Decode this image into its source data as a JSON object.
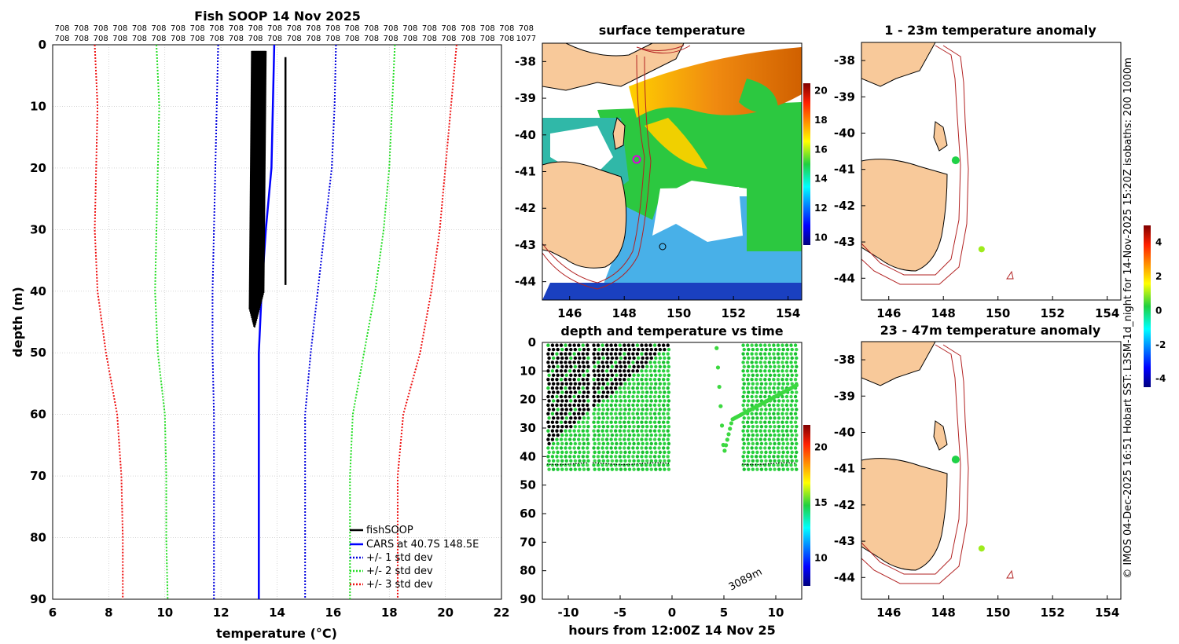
{
  "chart_data": [
    {
      "id": "profile",
      "type": "line",
      "title": "Fish SOOP 14 Nov 2025",
      "xlabel": "temperature (°C)",
      "ylabel": "depth (m)",
      "xlim": [
        6,
        22
      ],
      "ylim": [
        90,
        0
      ],
      "xticks": [
        "6",
        "8",
        "10",
        "12",
        "14",
        "16",
        "18",
        "20",
        "22"
      ],
      "yticks": [
        "0",
        "10",
        "20",
        "30",
        "40",
        "50",
        "60",
        "70",
        "80",
        "90"
      ],
      "top_counts_row1": [
        "708",
        "708",
        "708",
        "708",
        "708",
        "708",
        "708",
        "708",
        "708",
        "708",
        "708",
        "708",
        "708",
        "708",
        "708",
        "708",
        "708",
        "708",
        "708",
        "708",
        "708",
        "708",
        "708",
        "708",
        "708"
      ],
      "top_counts_row2": [
        "708",
        "708",
        "708",
        "708",
        "708",
        "708",
        "708",
        "708",
        "708",
        "708",
        "708",
        "708",
        "708",
        "708",
        "708",
        "708",
        "708",
        "708",
        "708",
        "708",
        "708",
        "708",
        "708",
        "708",
        "1077"
      ],
      "depth_grid": [
        0,
        10,
        20,
        30,
        40,
        50,
        60,
        70,
        80,
        90
      ],
      "cars": [
        13.9,
        13.85,
        13.8,
        13.6,
        13.45,
        13.35,
        13.35,
        13.35,
        13.35,
        13.35
      ],
      "std1_minus": [
        11.9,
        11.85,
        11.8,
        11.75,
        11.7,
        11.7,
        11.75,
        11.75,
        11.75,
        11.75
      ],
      "std1_plus": [
        16.1,
        16.05,
        15.95,
        15.7,
        15.45,
        15.2,
        15.0,
        15.0,
        15.0,
        15.0
      ],
      "std2_minus": [
        9.7,
        9.8,
        9.75,
        9.7,
        9.65,
        9.75,
        10.0,
        10.05,
        10.05,
        10.1
      ],
      "std2_plus": [
        18.2,
        18.1,
        18.0,
        17.8,
        17.5,
        17.1,
        16.7,
        16.6,
        16.6,
        16.6
      ],
      "std3_minus": [
        7.5,
        7.6,
        7.55,
        7.5,
        7.6,
        7.9,
        8.3,
        8.45,
        8.5,
        8.5
      ],
      "std3_plus": [
        20.4,
        20.2,
        20.0,
        19.8,
        19.5,
        19.1,
        18.5,
        18.3,
        18.3,
        18.3
      ],
      "fish_band": {
        "min_temp": 13.1,
        "max_temp": 13.6,
        "max_depth": 46
      },
      "fish_isolated": {
        "temp": 14.3,
        "depth_top": 2,
        "depth_bottom": 39
      },
      "legend": [
        "fishSOOP",
        "CARS at 40.7S 148.5E",
        "+/- 1 std dev",
        "+/- 2 std dev",
        "+/- 3 std dev"
      ],
      "colors": {
        "fish": "#000000",
        "cars": "#0000ff",
        "std1": "#0000dd",
        "std2": "#22dd22",
        "std3": "#ee1111"
      }
    },
    {
      "id": "sst",
      "type": "heatmap",
      "title": "surface temperature",
      "xticks": [
        "146",
        "148",
        "150",
        "152",
        "154"
      ],
      "yticks": [
        "-38",
        "-39",
        "-40",
        "-41",
        "-42",
        "-43",
        "-44"
      ],
      "xlim": [
        145,
        154.5
      ],
      "ylim": [
        -44.5,
        -37.5
      ],
      "colorbar_ticks": [
        "20",
        "18",
        "16",
        "14",
        "12",
        "10"
      ],
      "colorbar_range": [
        9.5,
        20.5
      ],
      "marker": {
        "lon": 148.5,
        "lat": -40.8
      }
    },
    {
      "id": "timeseries",
      "type": "scatter",
      "title": "depth and temperature vs time",
      "xlabel": "hours from 12:00Z 14 Nov 25",
      "xticks": [
        "-10",
        "-5",
        "0",
        "5",
        "10"
      ],
      "yticks": [
        "0",
        "10",
        "20",
        "30",
        "40",
        "50",
        "60",
        "70",
        "80",
        "90"
      ],
      "xlim": [
        -12.5,
        12.5
      ],
      "ylim": [
        90,
        0
      ],
      "annotation": "3089m",
      "colorbar_ticks": [
        "20",
        "15",
        "10"
      ],
      "colorbar_range": [
        7.5,
        22
      ],
      "segments": [
        [
          -12,
          -8.2
        ],
        [
          -7.6,
          -0.3
        ],
        [
          6.8,
          12
        ]
      ],
      "dive": {
        "t_start": 4.3,
        "t_end": 12,
        "depth_bottom": 39
      }
    },
    {
      "id": "anom1",
      "type": "scatter",
      "title": "1 - 23m temperature anomaly",
      "xticks": [
        "146",
        "148",
        "150",
        "152",
        "154"
      ],
      "yticks": [
        "-38",
        "-39",
        "-40",
        "-41",
        "-42",
        "-43",
        "-44"
      ],
      "xlim": [
        145,
        154.5
      ],
      "ylim": [
        -44.6,
        -37.5
      ],
      "points": [
        {
          "lon": 148.45,
          "lat": -40.75,
          "anom": 0.2
        },
        {
          "lon": 149.4,
          "lat": -43.2,
          "anom": 1.0
        }
      ]
    },
    {
      "id": "anom2",
      "type": "scatter",
      "title": "23 - 47m temperature anomaly",
      "xticks": [
        "146",
        "148",
        "150",
        "152",
        "154"
      ],
      "yticks": [
        "-38",
        "-39",
        "-40",
        "-41",
        "-42",
        "-43",
        "-44"
      ],
      "xlim": [
        145,
        154.5
      ],
      "ylim": [
        -44.6,
        -37.5
      ],
      "points": [
        {
          "lon": 148.45,
          "lat": -40.75,
          "anom": 0.2
        },
        {
          "lon": 149.4,
          "lat": -43.2,
          "anom": 1.0
        }
      ]
    },
    {
      "id": "anom_colorbar",
      "type": "colorbar",
      "ticks": [
        "4",
        "2",
        "0",
        "-2",
        "-4"
      ],
      "range": [
        -4.5,
        5
      ]
    }
  ],
  "side_text": "© IMOS 04-Dec-2025 16:51 Hobart SST: L3SM-1d_night for 14-Nov-2025 15:20Z isobaths: 200  1000m",
  "colors": {
    "land": "#f8c99a",
    "isobath": "#b22222",
    "axis": "#000000",
    "grid": "#bbbbbb"
  }
}
